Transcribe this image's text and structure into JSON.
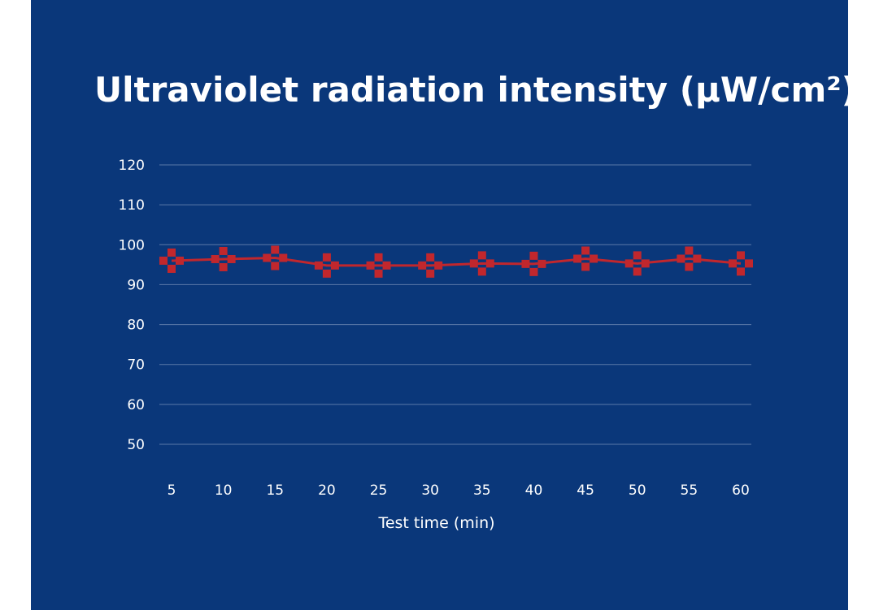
{
  "colors": {
    "background": "#0a377a",
    "series": "#c1272d",
    "grid": "#5a78a8",
    "text": "#ffffff"
  },
  "chart_data": {
    "type": "line",
    "title": "Ultraviolet radiation intensity (μW/cm²)",
    "xlabel": "Test time (min)",
    "ylabel": "",
    "categories": [
      "5",
      "10",
      "15",
      "20",
      "25",
      "30",
      "35",
      "40",
      "45",
      "50",
      "55",
      "60"
    ],
    "series": [
      {
        "name": "Ultraviolet radiation intensity",
        "marker": "cross",
        "values": [
          96.0,
          96.4,
          96.7,
          94.8,
          94.8,
          94.8,
          95.3,
          95.2,
          96.5,
          95.3,
          96.5,
          95.3
        ]
      }
    ],
    "yticks": [
      50,
      60,
      70,
      80,
      90,
      100,
      110,
      120
    ],
    "ylim": [
      50,
      120
    ],
    "grid": true,
    "legend": "none"
  }
}
